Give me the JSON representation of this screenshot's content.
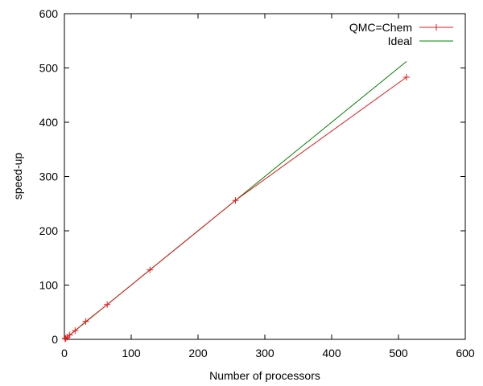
{
  "chart_data": {
    "type": "line",
    "title": "",
    "xlabel": "Number of processors",
    "ylabel": "speed-up",
    "xlim": [
      0,
      600
    ],
    "ylim": [
      0,
      600
    ],
    "xticks": [
      0,
      100,
      200,
      300,
      400,
      500,
      600
    ],
    "yticks": [
      0,
      100,
      200,
      300,
      400,
      500,
      600
    ],
    "grid": false,
    "legend_position": "top-right",
    "series": [
      {
        "name": "QMC=Chem",
        "color": "#e41a1c",
        "marker": "plus",
        "x": [
          1,
          2,
          4,
          8,
          16,
          32,
          64,
          128,
          256,
          512
        ],
        "y": [
          1,
          2,
          4,
          8,
          16,
          33,
          64,
          128,
          256,
          483
        ]
      },
      {
        "name": "Ideal",
        "color": "#008000",
        "marker": "none",
        "x": [
          1,
          512
        ],
        "y": [
          1,
          512
        ]
      }
    ]
  }
}
